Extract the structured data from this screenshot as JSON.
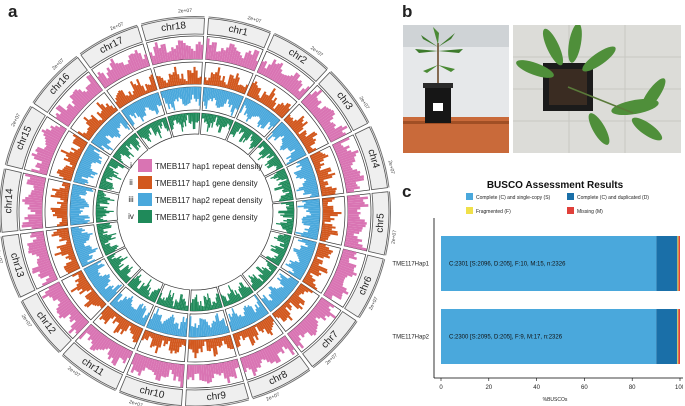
{
  "panels": {
    "a": "a",
    "b": "b",
    "c": "c"
  },
  "circos": {
    "chromosomes": [
      "chr1",
      "chr2",
      "chr3",
      "chr4",
      "chr5",
      "chr6",
      "chr7",
      "chr8",
      "chr9",
      "chr10",
      "chr11",
      "chr12",
      "chr13",
      "chr14",
      "chr15",
      "chr16",
      "chr17",
      "chr18"
    ],
    "scale_label": "2e+07",
    "legend": [
      {
        "roman": "i",
        "label": "TMEB117 hap1 repeat density",
        "color": "#d974b3"
      },
      {
        "roman": "ii",
        "label": "TMEB117 hap1 gene density",
        "color": "#d2581e"
      },
      {
        "roman": "iii",
        "label": "TMEB117 hap2 repeat density",
        "color": "#4aa8dc"
      },
      {
        "roman": "iv",
        "label": "TMEB117 hap2 gene density",
        "color": "#1f8a5a"
      }
    ]
  },
  "chart_data": {
    "type": "bar",
    "title": "BUSCO Assessment Results",
    "xlabel": "%BUSCOs",
    "xlim": [
      0,
      100
    ],
    "xticks": [
      0,
      20,
      40,
      60,
      80,
      100
    ],
    "categories": [
      "TME117Hap1",
      "TME117Hap2"
    ],
    "annotations": [
      "C:2301 [S:2096, D:205], F:10, M:15, n:2326",
      "C:2300 [S:2095, D:205], F:9, M:17, n:2326"
    ],
    "series": [
      {
        "name": "Complete (C) and single-copy (S)",
        "color": "#4aa8dc",
        "values": [
          90.11,
          90.07
        ]
      },
      {
        "name": "Complete (C) and duplicated (D)",
        "color": "#1a6fa8",
        "values": [
          8.81,
          8.81
        ]
      },
      {
        "name": "Fragmented (F)",
        "color": "#f0e04a",
        "values": [
          0.43,
          0.39
        ]
      },
      {
        "name": "Missing (M)",
        "color": "#e0403a",
        "values": [
          0.64,
          0.73
        ]
      }
    ],
    "legend_position": "top"
  }
}
